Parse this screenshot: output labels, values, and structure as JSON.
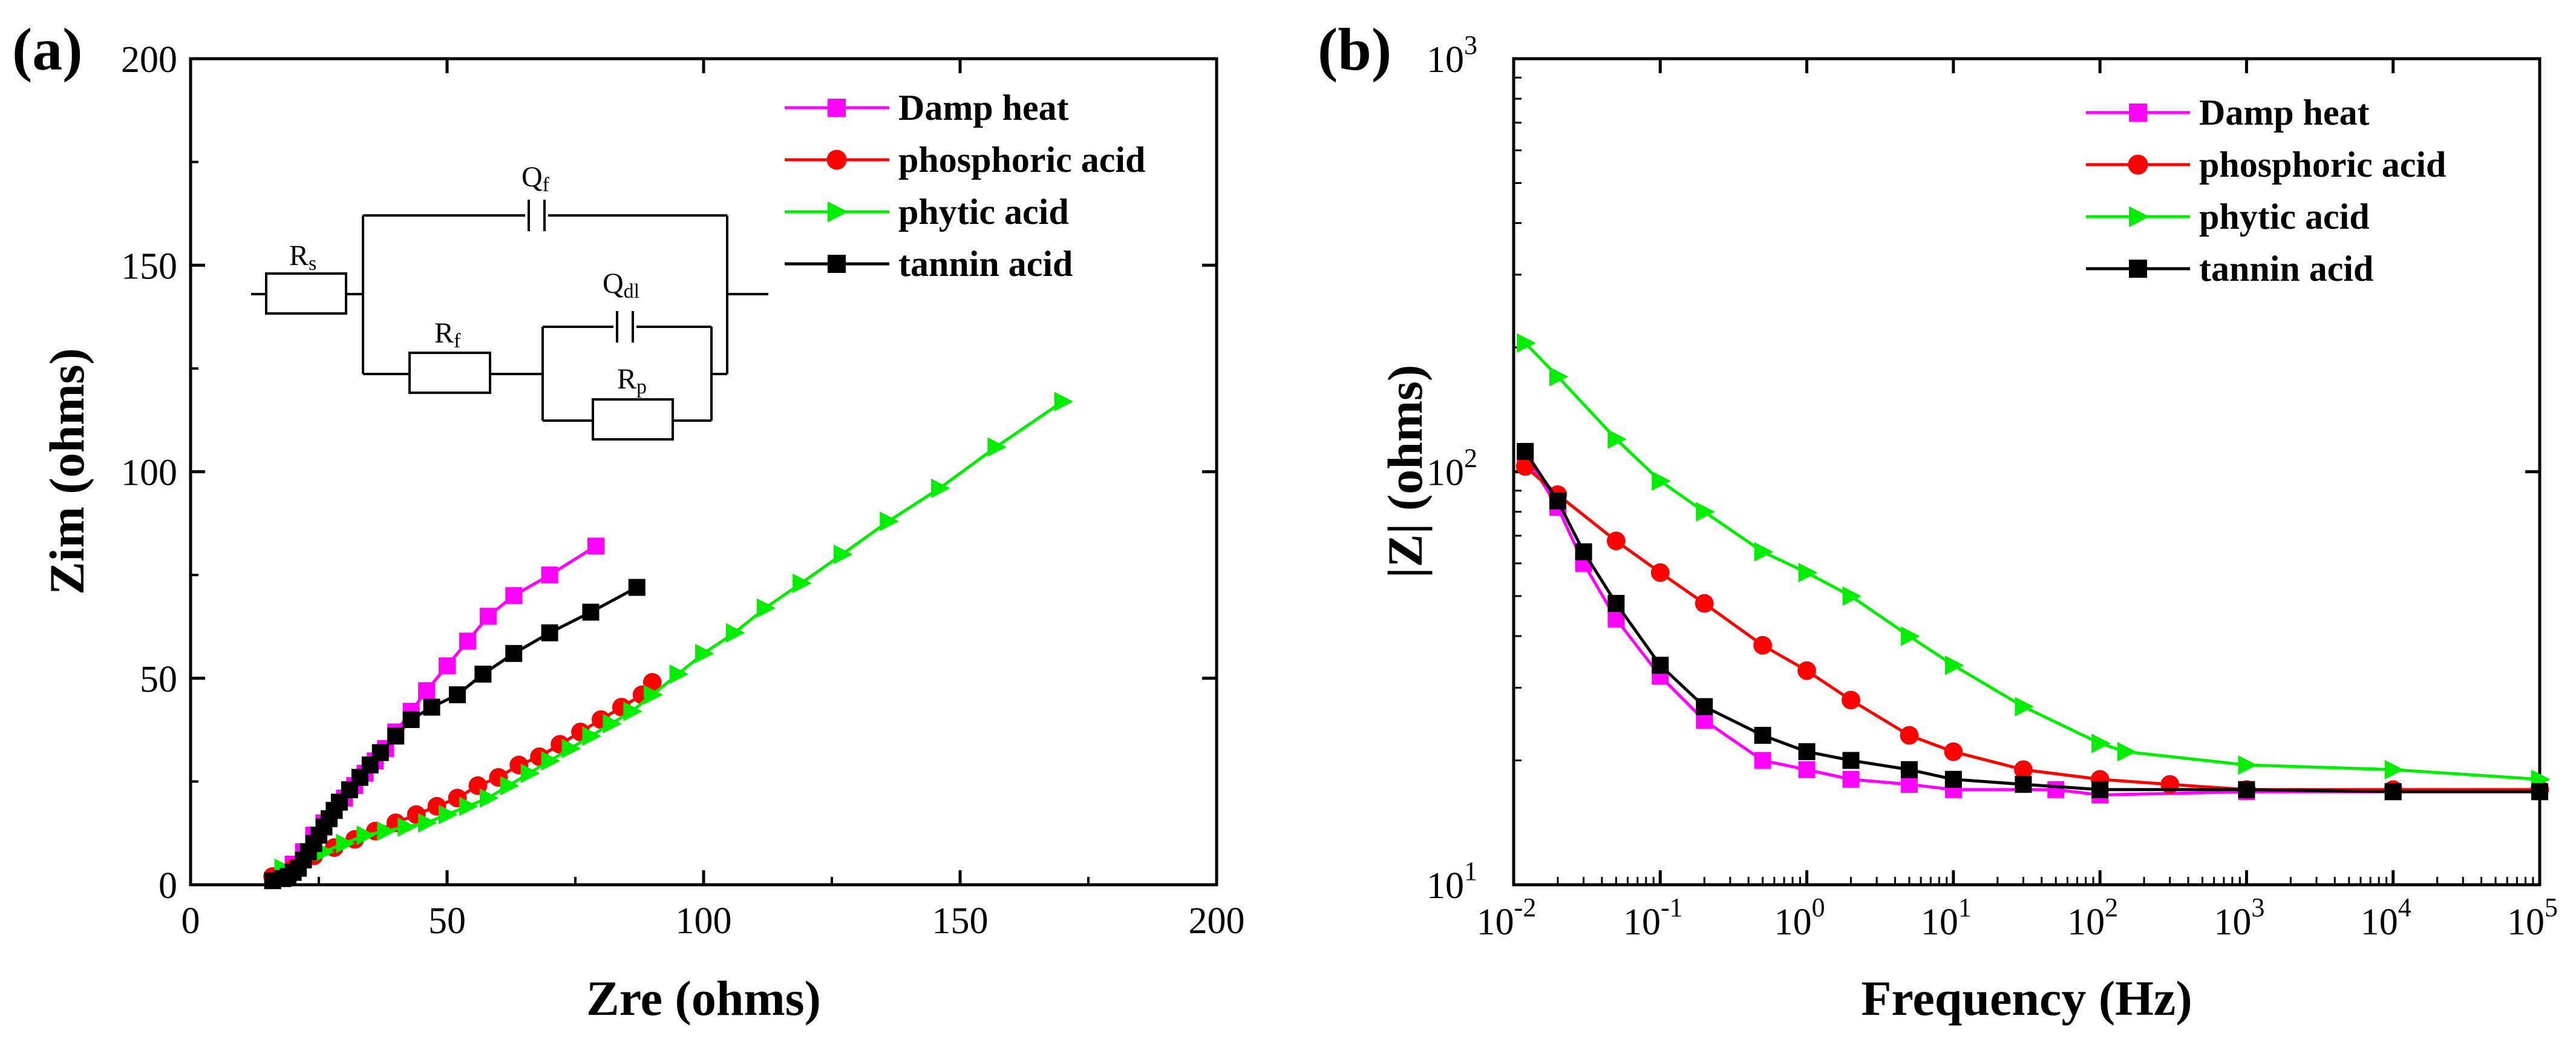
{
  "chart_data": [
    {
      "panel_label": "(a)",
      "type": "line",
      "title": "",
      "xlabel": "Zre (ohms)",
      "ylabel": "Zim (ohms)",
      "xlim": [
        0,
        200
      ],
      "ylim": [
        0,
        200
      ],
      "xticks": [
        "0",
        "50",
        "100",
        "150",
        "200"
      ],
      "yticks": [
        "0",
        "50",
        "100",
        "150",
        "200"
      ],
      "legend_position": "top-right",
      "inset": {
        "description": "equivalent circuit",
        "labels": {
          "rs": {
            "main": "R",
            "sub": "s"
          },
          "qf": {
            "main": "Q",
            "sub": "f"
          },
          "rf": {
            "main": "R",
            "sub": "f"
          },
          "qdl": {
            "main": "Q",
            "sub": "dl"
          },
          "rp": {
            "main": "R",
            "sub": "p"
          }
        }
      },
      "series": [
        {
          "name": "Damp heat",
          "color": "#ff00ff",
          "marker": "square",
          "x": [
            16,
            18,
            20,
            22,
            24,
            26,
            28,
            30,
            32,
            34,
            36,
            38,
            40,
            43,
            46,
            50,
            54,
            58,
            63,
            70,
            79
          ],
          "y": [
            1,
            2,
            5,
            8,
            12,
            15,
            18,
            21,
            24,
            27,
            30,
            33,
            37,
            42,
            47,
            53,
            59,
            65,
            70,
            75,
            82
          ]
        },
        {
          "name": "phosphoric acid",
          "color": "#ff0000",
          "marker": "circle",
          "x": [
            16,
            20,
            24,
            28,
            32,
            36,
            40,
            44,
            48,
            52,
            56,
            60,
            64,
            68,
            72,
            76,
            80,
            84,
            88,
            90
          ],
          "y": [
            2,
            4,
            7,
            9,
            11,
            13,
            15,
            17,
            19,
            21,
            24,
            26,
            29,
            31,
            34,
            37,
            40,
            43,
            46,
            49
          ]
        },
        {
          "name": "phytic acid",
          "color": "#00ee00",
          "marker": "triangle-right",
          "x": [
            18,
            22,
            26,
            30,
            34,
            38,
            42,
            46,
            50,
            54,
            58,
            62,
            66,
            70,
            74,
            78,
            82,
            86,
            90,
            95,
            100,
            106,
            112,
            119,
            127,
            136,
            146,
            157,
            170
          ],
          "y": [
            4,
            6,
            8,
            10,
            12,
            13,
            14,
            15,
            17,
            19,
            21,
            24,
            27,
            30,
            33,
            36,
            39,
            42,
            46,
            51,
            56,
            61,
            67,
            73,
            80,
            88,
            96,
            106,
            117
          ]
        },
        {
          "name": "tannin acid",
          "color": "#000000",
          "marker": "square",
          "x": [
            16,
            18,
            19,
            20,
            21,
            22,
            23,
            24,
            25,
            26,
            27,
            28,
            29,
            31,
            33,
            35,
            37,
            40,
            43,
            47,
            52,
            57,
            63,
            70,
            78,
            87
          ],
          "y": [
            1,
            1.5,
            2,
            3,
            4,
            6,
            8,
            10,
            12,
            14,
            16,
            18,
            20,
            23,
            26,
            29,
            32,
            36,
            40,
            43,
            46,
            51,
            56,
            61,
            66,
            72
          ]
        }
      ]
    },
    {
      "panel_label": "(b)",
      "type": "line",
      "title": "",
      "xlabel": "Frequency (Hz)",
      "ylabel": "|Z| (ohms)",
      "xscale": "log",
      "yscale": "log",
      "xlim": [
        0.01,
        100000
      ],
      "ylim": [
        10,
        1000
      ],
      "xticks": [
        {
          "base": "10",
          "exp": "-2"
        },
        {
          "base": "10",
          "exp": "-1"
        },
        {
          "base": "10",
          "exp": "0"
        },
        {
          "base": "10",
          "exp": "1"
        },
        {
          "base": "10",
          "exp": "2"
        },
        {
          "base": "10",
          "exp": "3"
        },
        {
          "base": "10",
          "exp": "4"
        },
        {
          "base": "10",
          "exp": "5"
        }
      ],
      "yticks": [
        {
          "base": "10",
          "exp": "1"
        },
        {
          "base": "10",
          "exp": "2"
        },
        {
          "base": "10",
          "exp": "3"
        }
      ],
      "legend_position": "top-right",
      "series": [
        {
          "name": "Damp heat",
          "color": "#ff00ff",
          "marker": "square",
          "x": [
            0.012,
            0.02,
            0.03,
            0.05,
            0.1,
            0.2,
            0.5,
            1,
            2,
            5,
            10,
            50,
            100,
            1000,
            10000,
            100000
          ],
          "y": [
            110,
            82,
            60,
            44,
            32,
            25,
            20,
            19,
            18,
            17.5,
            17,
            17,
            16.5,
            16.8,
            16.8,
            16.8
          ]
        },
        {
          "name": "phosphoric acid",
          "color": "#ff0000",
          "marker": "circle",
          "x": [
            0.012,
            0.02,
            0.05,
            0.1,
            0.2,
            0.5,
            1,
            2,
            5,
            10,
            30,
            100,
            300,
            1000,
            10000,
            100000
          ],
          "y": [
            103,
            88,
            68,
            57,
            48,
            38,
            33,
            28,
            23,
            21,
            19,
            18,
            17.5,
            17,
            17,
            17
          ]
        },
        {
          "name": "phytic acid",
          "color": "#00ee00",
          "marker": "triangle-right",
          "x": [
            0.012,
            0.02,
            0.05,
            0.1,
            0.2,
            0.5,
            1,
            2,
            5,
            10,
            30,
            100,
            150,
            1000,
            10000,
            100000
          ],
          "y": [
            205,
            170,
            120,
            95,
            80,
            64,
            57,
            50,
            40,
            34,
            27,
            22,
            21,
            19.5,
            19,
            18
          ]
        },
        {
          "name": "tannin acid",
          "color": "#000000",
          "marker": "square",
          "x": [
            0.012,
            0.02,
            0.03,
            0.05,
            0.1,
            0.2,
            0.5,
            1,
            2,
            5,
            10,
            30,
            100,
            1000,
            10000,
            100000
          ],
          "y": [
            112,
            85,
            64,
            48,
            34,
            27,
            23,
            21,
            20,
            19,
            18,
            17.5,
            17,
            17,
            16.8,
            16.8
          ]
        }
      ]
    }
  ]
}
